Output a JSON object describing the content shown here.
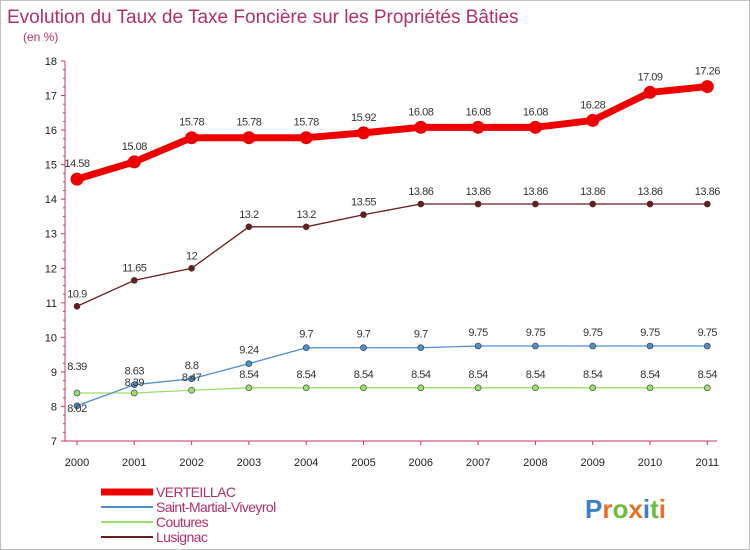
{
  "chart_data": {
    "type": "line",
    "title": "Evolution du Taux de Taxe Foncière sur les Propriétés Bâties",
    "unit_label": "(en %)",
    "xlabel": "",
    "ylabel": "",
    "ylim": [
      7,
      18
    ],
    "yticks": [
      "7",
      "8",
      "9",
      "10",
      "11",
      "12",
      "13",
      "14",
      "15",
      "16",
      "17",
      "18"
    ],
    "categories": [
      "2000",
      "2001",
      "2002",
      "2003",
      "2004",
      "2005",
      "2006",
      "2007",
      "2008",
      "2009",
      "2010",
      "2011"
    ],
    "series": [
      {
        "name": "Lusignac",
        "color": "#6b1b1b",
        "values": [
          10.9,
          11.65,
          12,
          13.2,
          13.2,
          13.55,
          13.86,
          13.86,
          13.86,
          13.86,
          13.86,
          13.86
        ],
        "labels": [
          "10.9",
          "11.65",
          "12",
          "13.2",
          "13.2",
          "13.55",
          "13.86",
          "13.86",
          "13.86",
          "13.86",
          "13.86",
          "13.86"
        ]
      },
      {
        "name": "Coutures",
        "color": "#9be06b",
        "values": [
          8.39,
          8.39,
          8.47,
          8.54,
          8.54,
          8.54,
          8.54,
          8.54,
          8.54,
          8.54,
          8.54,
          8.54
        ],
        "labels": [
          "8.39",
          "8.39",
          "8.47",
          "8.54",
          "8.54",
          "8.54",
          "8.54",
          "8.54",
          "8.54",
          "8.54",
          "8.54",
          "8.54"
        ]
      },
      {
        "name": "Saint-Martial-Viveyrol",
        "color": "#4d8fcc",
        "values": [
          8.02,
          8.63,
          8.8,
          9.24,
          9.7,
          9.7,
          9.7,
          9.75,
          9.75,
          9.75,
          9.75,
          9.75
        ],
        "labels": [
          "8.02",
          "8.63",
          "8.8",
          "9.24",
          "9.7",
          "9.7",
          "9.7",
          "9.75",
          "9.75",
          "9.75",
          "9.75",
          "9.75"
        ]
      },
      {
        "name": "VERTEILLAC",
        "color": "#ee0000",
        "values": [
          14.58,
          15.08,
          15.78,
          15.78,
          15.78,
          15.92,
          16.08,
          16.08,
          16.08,
          16.28,
          17.09,
          17.26
        ],
        "labels": [
          "14.58",
          "15.08",
          "15.78",
          "15.78",
          "15.78",
          "15.92",
          "16.08",
          "16.08",
          "16.08",
          "16.28",
          "17.09",
          "17.26"
        ]
      }
    ],
    "legend": [
      "VERTEILLAC",
      "Saint-Martial-Viveyrol",
      "Coutures",
      "Lusignac"
    ],
    "legend_placement": "bottom-left",
    "grid": false
  },
  "brand": {
    "text": "Proxiti",
    "letter_colors": [
      "#3a7fd0",
      "#e8702a",
      "#6cbd3a",
      "#e8702a",
      "#3a7fd0",
      "#6cbd3a",
      "#e8702a"
    ]
  }
}
